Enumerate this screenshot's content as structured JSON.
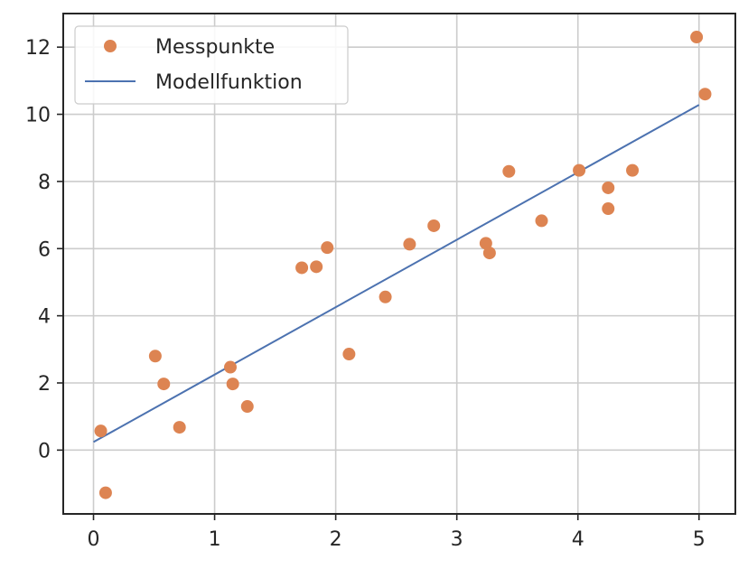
{
  "chart_data": {
    "type": "scatter",
    "title": "",
    "xlabel": "",
    "ylabel": "",
    "xlim": [
      -0.25,
      5.3
    ],
    "ylim": [
      -1.9,
      13.0
    ],
    "xticks": [
      0,
      1,
      2,
      3,
      4,
      5
    ],
    "yticks": [
      0,
      2,
      4,
      6,
      8,
      10,
      12
    ],
    "grid": true,
    "legend_position": "top-left",
    "series": [
      {
        "name": "Messpunkte",
        "kind": "scatter",
        "color": "#dd8452",
        "points": [
          [
            0.06,
            0.57
          ],
          [
            0.1,
            -1.27
          ],
          [
            0.51,
            2.8
          ],
          [
            0.58,
            1.97
          ],
          [
            0.71,
            0.68
          ],
          [
            1.13,
            2.47
          ],
          [
            1.15,
            1.97
          ],
          [
            1.27,
            1.3
          ],
          [
            1.72,
            5.43
          ],
          [
            1.84,
            5.46
          ],
          [
            1.93,
            6.03
          ],
          [
            2.11,
            2.86
          ],
          [
            2.41,
            4.56
          ],
          [
            2.61,
            6.13
          ],
          [
            2.81,
            6.68
          ],
          [
            3.24,
            6.16
          ],
          [
            3.27,
            5.87
          ],
          [
            3.43,
            8.3
          ],
          [
            3.7,
            6.83
          ],
          [
            4.01,
            8.33
          ],
          [
            4.25,
            7.19
          ],
          [
            4.25,
            7.81
          ],
          [
            4.45,
            8.33
          ],
          [
            4.98,
            12.3
          ],
          [
            5.05,
            10.6
          ]
        ]
      },
      {
        "name": "Modellfunktion",
        "kind": "line",
        "color": "#4c72b0",
        "points": [
          [
            0.0,
            0.24
          ],
          [
            5.0,
            10.28
          ]
        ]
      }
    ]
  }
}
